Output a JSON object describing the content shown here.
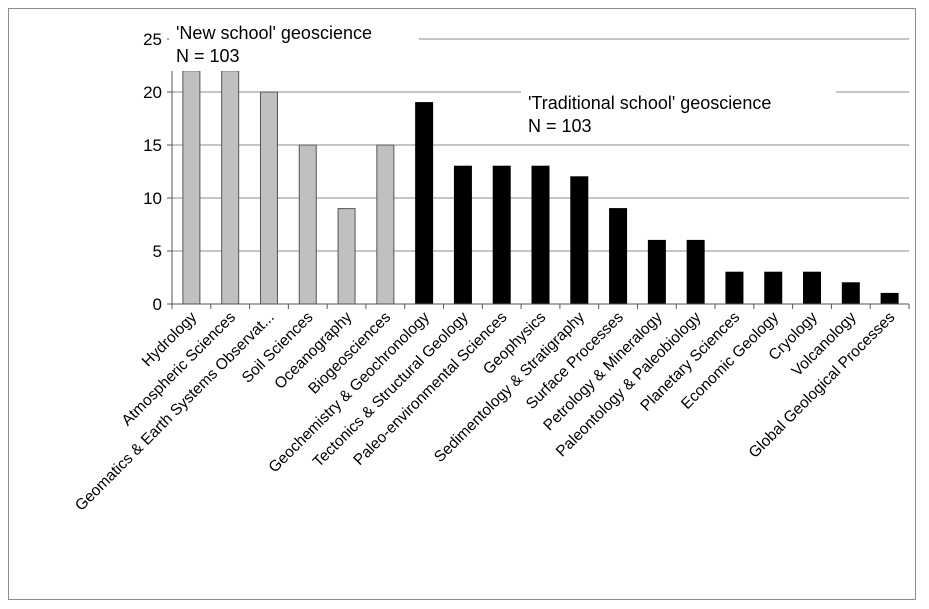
{
  "chart_data": {
    "type": "bar",
    "categories": [
      "Hydrology",
      "Atmospheric Sciences",
      "Geomatics & Earth Systems Observat...",
      "Soil Sciences",
      "Oceanography",
      "Biogeosciences",
      "Geochemistry & Geochronology",
      "Tectonics & Structural Geology",
      "Paleo-environmental Sciences",
      "Geophysics",
      "Sedimentology & Stratigraphy",
      "Surface Processes",
      "Petrology & Mineralogy",
      "Paleontology & Paleobiology",
      "Planetary Sciences",
      "Economic Geology",
      "Cryology",
      "Volcanology",
      "Global Geological Processes"
    ],
    "values": [
      22,
      22,
      20,
      15,
      9,
      15,
      19,
      13,
      13,
      13,
      12,
      9,
      6,
      6,
      3,
      3,
      3,
      2,
      1
    ],
    "groups": [
      "new",
      "new",
      "new",
      "new",
      "new",
      "new",
      "trad",
      "trad",
      "trad",
      "trad",
      "trad",
      "trad",
      "trad",
      "trad",
      "trad",
      "trad",
      "trad",
      "trad",
      "trad"
    ],
    "colors": {
      "new": "#c0c0c0",
      "trad": "#000000",
      "new_stroke": "#555555",
      "grid": "#8c8c8c",
      "axis": "#555555"
    },
    "ylim": [
      0,
      25
    ],
    "yticks": [
      0,
      5,
      10,
      15,
      20,
      25
    ],
    "grid": true,
    "xlabel": "",
    "ylabel": "",
    "annotations": [
      {
        "id": "new",
        "line1": "'New school' geoscience",
        "line2": "N = 103"
      },
      {
        "id": "trad",
        "line1": "'Traditional school' geoscience",
        "line2": "N = 103"
      }
    ]
  }
}
